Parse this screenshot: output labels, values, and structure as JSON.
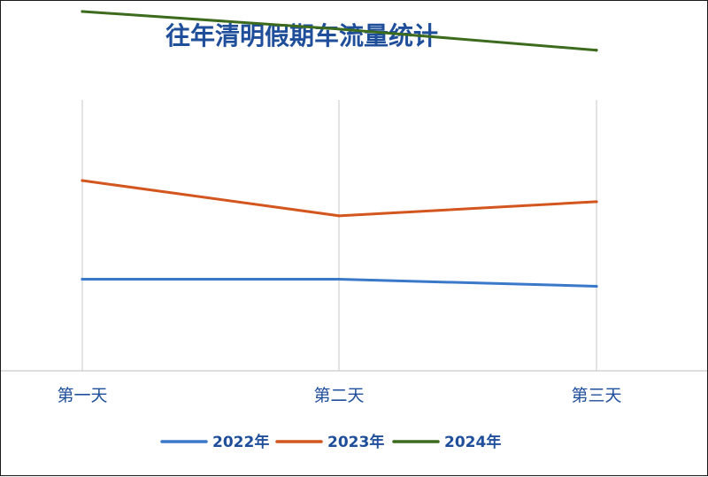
{
  "chart_data": {
    "type": "line",
    "title": "往年清明假期车流量统计",
    "categories": [
      "第一天",
      "第二天",
      "第三天"
    ],
    "series": [
      {
        "name": "2022年",
        "values": [
          26,
          26,
          24
        ],
        "color": "#3a78c9"
      },
      {
        "name": "2023年",
        "values": [
          54,
          44,
          48
        ],
        "color": "#d4561f"
      },
      {
        "name": "2024年",
        "values": [
          102,
          97,
          91
        ],
        "color": "#3d6b1e"
      }
    ],
    "ylim": [
      0,
      105
    ],
    "grid": "vertical",
    "legend": "bottom"
  }
}
